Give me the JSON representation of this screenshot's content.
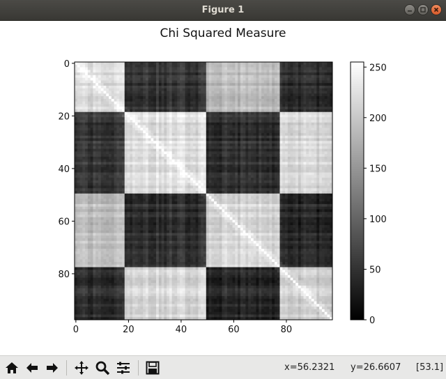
{
  "window": {
    "title": "Figure 1"
  },
  "plot": {
    "title": "Chi Squared Measure",
    "x_ticks": [
      "0",
      "20",
      "40",
      "60",
      "80"
    ],
    "y_ticks": [
      "0",
      "20",
      "40",
      "60",
      "80"
    ],
    "colorbar_ticks": [
      "250",
      "200",
      "150",
      "100",
      "50",
      "0"
    ]
  },
  "chart_data": {
    "type": "heatmap",
    "title": "Chi Squared Measure",
    "colormap": "gray",
    "size": [
      98,
      98
    ],
    "blocks": [
      [
        0,
        19
      ],
      [
        19,
        50
      ],
      [
        50,
        78
      ],
      [
        78,
        98
      ]
    ],
    "block_level_matrix": [
      [
        220,
        55,
        190,
        45
      ],
      [
        55,
        225,
        50,
        215
      ],
      [
        190,
        50,
        215,
        40
      ],
      [
        45,
        215,
        40,
        205
      ]
    ],
    "diagonal_value": 255,
    "x_ticks": [
      0,
      20,
      40,
      60,
      80
    ],
    "y_ticks": [
      0,
      20,
      40,
      60,
      80
    ],
    "colorbar": {
      "min": 0,
      "max": 255,
      "ticks": [
        0,
        50,
        100,
        150,
        200,
        250
      ]
    }
  },
  "toolbar": {
    "buttons": [
      "home-icon",
      "back-icon",
      "forward-icon",
      "pan-icon",
      "zoom-icon",
      "configure-icon",
      "save-icon"
    ]
  },
  "status": {
    "x": "x=56.2321",
    "y": "y=26.6607",
    "value": "[53.1]"
  }
}
